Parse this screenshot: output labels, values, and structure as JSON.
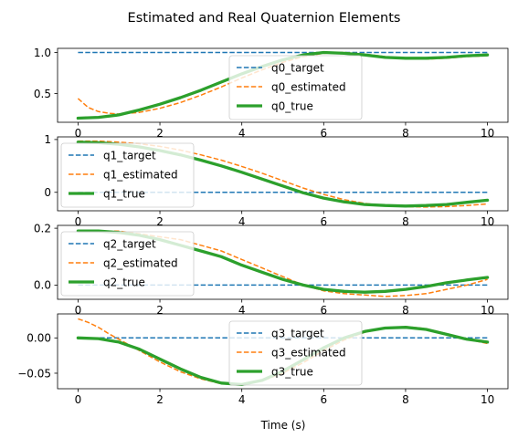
{
  "chart_data": {
    "type": "line",
    "title": "Estimated and Real Quaternion Elements",
    "xlabel": "Time (s)",
    "xlim": [
      -0.5,
      10.5
    ],
    "xticks": [
      0,
      2,
      4,
      6,
      8,
      10
    ],
    "colors": {
      "target": "#1f77b4",
      "estimated": "#ff7f0e",
      "true": "#2ca02c"
    },
    "subplots": [
      {
        "ylim": [
          0.15,
          1.05
        ],
        "yticks": [
          {
            "v": 0.5,
            "label": "0.5"
          },
          {
            "v": 1.0,
            "label": "1.0"
          }
        ],
        "legend_loc": "center",
        "series": [
          {
            "name": "q0_target",
            "kind": "target",
            "x": [
              0,
              10
            ],
            "y": [
              1.0,
              1.0
            ]
          },
          {
            "name": "q0_estimated",
            "kind": "estimated",
            "x": [
              0,
              0.25,
              0.5,
              0.75,
              1,
              1.5,
              2,
              2.5,
              3,
              3.5,
              4,
              4.5,
              5,
              5.5,
              6,
              6.5,
              7,
              7.5,
              8,
              8.5,
              9,
              9.5,
              10
            ],
            "y": [
              0.44,
              0.33,
              0.28,
              0.26,
              0.25,
              0.27,
              0.32,
              0.39,
              0.48,
              0.58,
              0.69,
              0.79,
              0.88,
              0.95,
              0.99,
              1.0,
              0.98,
              0.95,
              0.93,
              0.92,
              0.93,
              0.95,
              0.96
            ]
          },
          {
            "name": "q0_true",
            "kind": "true",
            "x": [
              0,
              0.5,
              1,
              1.5,
              2,
              2.5,
              3,
              3.5,
              4,
              4.5,
              5,
              5.5,
              6,
              6.5,
              7,
              7.5,
              8,
              8.5,
              9,
              9.5,
              10
            ],
            "y": [
              0.2,
              0.21,
              0.24,
              0.3,
              0.37,
              0.45,
              0.54,
              0.64,
              0.74,
              0.83,
              0.91,
              0.97,
              1.0,
              0.99,
              0.97,
              0.94,
              0.93,
              0.93,
              0.94,
              0.96,
              0.97
            ]
          }
        ]
      },
      {
        "ylim": [
          -0.35,
          1.05
        ],
        "yticks": [
          {
            "v": 0,
            "label": "0"
          },
          {
            "v": 1,
            "label": "1"
          }
        ],
        "legend_loc": "lower left",
        "series": [
          {
            "name": "q1_target",
            "kind": "target",
            "x": [
              0,
              10
            ],
            "y": [
              0.0,
              0.0
            ]
          },
          {
            "name": "q1_estimated",
            "kind": "estimated",
            "x": [
              0,
              0.5,
              1,
              1.5,
              2,
              2.5,
              3,
              3.5,
              4,
              4.5,
              5,
              5.5,
              6,
              6.5,
              7,
              7.5,
              8,
              8.5,
              9,
              9.5,
              10
            ],
            "y": [
              0.97,
              0.97,
              0.95,
              0.92,
              0.87,
              0.8,
              0.71,
              0.61,
              0.49,
              0.36,
              0.22,
              0.08,
              -0.04,
              -0.14,
              -0.21,
              -0.25,
              -0.27,
              -0.28,
              -0.27,
              -0.25,
              -0.22
            ]
          },
          {
            "name": "q1_true",
            "kind": "true",
            "x": [
              0,
              0.5,
              1,
              1.5,
              2,
              2.5,
              3,
              3.5,
              4,
              4.5,
              5,
              5.5,
              6,
              6.5,
              7,
              7.5,
              8,
              8.5,
              9,
              9.5,
              10
            ],
            "y": [
              0.95,
              0.94,
              0.91,
              0.86,
              0.79,
              0.71,
              0.61,
              0.5,
              0.38,
              0.25,
              0.12,
              -0.01,
              -0.11,
              -0.18,
              -0.23,
              -0.25,
              -0.26,
              -0.25,
              -0.23,
              -0.19,
              -0.15
            ]
          }
        ]
      },
      {
        "ylim": [
          -0.05,
          0.21
        ],
        "yticks": [
          {
            "v": 0.0,
            "label": "0.0"
          },
          {
            "v": 0.2,
            "label": "0.2"
          }
        ],
        "legend_loc": "lower left",
        "series": [
          {
            "name": "q2_target",
            "kind": "target",
            "x": [
              0,
              10
            ],
            "y": [
              0.0,
              0.0
            ]
          },
          {
            "name": "q2_estimated",
            "kind": "estimated",
            "x": [
              0,
              0.5,
              1,
              1.5,
              2,
              2.5,
              3,
              3.5,
              4,
              4.5,
              5,
              5.5,
              6,
              6.5,
              7,
              7.5,
              8,
              8.5,
              9,
              9.5,
              10
            ],
            "y": [
              0.19,
              0.19,
              0.19,
              0.18,
              0.17,
              0.16,
              0.14,
              0.12,
              0.09,
              0.06,
              0.03,
              0.0,
              -0.02,
              -0.03,
              -0.035,
              -0.04,
              -0.037,
              -0.03,
              -0.015,
              0.0,
              0.02
            ]
          },
          {
            "name": "q2_true",
            "kind": "true",
            "x": [
              0,
              0.5,
              1,
              1.5,
              2,
              2.5,
              3,
              3.5,
              4,
              4.5,
              5,
              5.5,
              6,
              6.5,
              7,
              7.5,
              8,
              8.5,
              9,
              9.5,
              10
            ],
            "y": [
              0.19,
              0.19,
              0.185,
              0.175,
              0.16,
              0.14,
              0.12,
              0.1,
              0.07,
              0.045,
              0.02,
              0.0,
              -0.015,
              -0.022,
              -0.025,
              -0.022,
              -0.015,
              -0.005,
              0.008,
              0.018,
              0.027
            ]
          }
        ]
      },
      {
        "ylim": [
          -0.072,
          0.034
        ],
        "yticks": [
          {
            "v": -0.05,
            "label": "−0.05"
          },
          {
            "v": 0.0,
            "label": "0.00"
          }
        ],
        "legend_loc": "center",
        "series": [
          {
            "name": "q3_target",
            "kind": "target",
            "x": [
              0,
              10
            ],
            "y": [
              0.0,
              0.0
            ]
          },
          {
            "name": "q3_estimated",
            "kind": "estimated",
            "x": [
              0,
              0.25,
              0.5,
              0.75,
              1,
              1.5,
              2,
              2.5,
              3,
              3.5,
              4,
              4.5,
              5,
              5.5,
              6,
              6.5,
              7,
              7.5,
              8,
              8.5,
              9,
              9.5,
              10
            ],
            "y": [
              0.027,
              0.022,
              0.015,
              0.006,
              -0.002,
              -0.018,
              -0.034,
              -0.048,
              -0.058,
              -0.065,
              -0.066,
              -0.061,
              -0.05,
              -0.035,
              -0.018,
              -0.003,
              0.008,
              0.014,
              0.016,
              0.013,
              0.006,
              -0.002,
              -0.008
            ]
          },
          {
            "name": "q3_true",
            "kind": "true",
            "x": [
              0,
              0.5,
              1,
              1.5,
              2,
              2.5,
              3,
              3.5,
              4,
              4.5,
              5,
              5.5,
              6,
              6.5,
              7,
              7.5,
              8,
              8.5,
              9,
              9.5,
              10
            ],
            "y": [
              0.0,
              -0.001,
              -0.006,
              -0.016,
              -0.03,
              -0.044,
              -0.056,
              -0.064,
              -0.066,
              -0.06,
              -0.047,
              -0.031,
              -0.014,
              0.0,
              0.009,
              0.014,
              0.015,
              0.012,
              0.005,
              -0.002,
              -0.006
            ]
          }
        ]
      }
    ]
  }
}
